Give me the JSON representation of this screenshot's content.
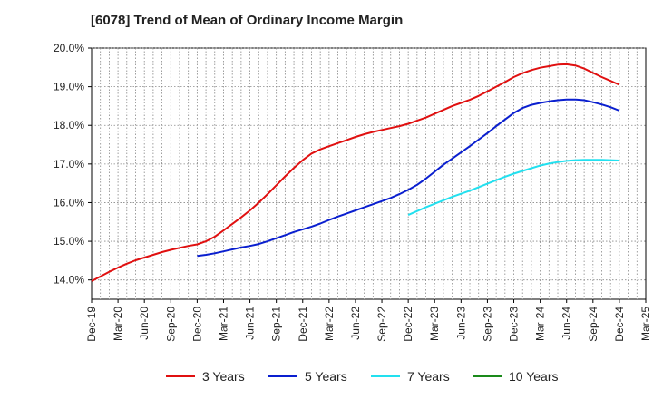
{
  "colors": {
    "3y": "#e01010",
    "5y": "#0a1fcf",
    "7y": "#22e0ef",
    "10y": "#1a8a1a",
    "grid": "#888888"
  },
  "chart_data": {
    "type": "line",
    "title": "[6078]  Trend of Mean of Ordinary Income Margin",
    "xlabel": "",
    "ylabel": "",
    "ylim": [
      13.5,
      20.0
    ],
    "yticks": [
      14.0,
      15.0,
      16.0,
      17.0,
      18.0,
      19.0,
      20.0
    ],
    "ytick_labels": [
      "14.0%",
      "15.0%",
      "16.0%",
      "17.0%",
      "18.0%",
      "19.0%",
      "20.0%"
    ],
    "xtick_labels": [
      "Dec-19",
      "Mar-20",
      "Jun-20",
      "Sep-20",
      "Dec-20",
      "Mar-21",
      "Jun-21",
      "Sep-21",
      "Dec-21",
      "Mar-22",
      "Jun-22",
      "Sep-22",
      "Dec-22",
      "Mar-23",
      "Jun-23",
      "Sep-23",
      "Dec-23",
      "Mar-24",
      "Jun-24",
      "Sep-24",
      "Dec-24",
      "Mar-25"
    ],
    "grid": true,
    "legend": "bottom",
    "series": [
      {
        "name": "3 Years",
        "color_key": "3y",
        "x": [
          "2019-12",
          "2020-01",
          "2020-02",
          "2020-03",
          "2020-04",
          "2020-05",
          "2020-06",
          "2020-07",
          "2020-08",
          "2020-09",
          "2020-10",
          "2020-11",
          "2020-12",
          "2021-01",
          "2021-02",
          "2021-03",
          "2021-04",
          "2021-05",
          "2021-06",
          "2021-07",
          "2021-08",
          "2021-09",
          "2021-10",
          "2021-11",
          "2021-12",
          "2022-01",
          "2022-02",
          "2022-03",
          "2022-04",
          "2022-05",
          "2022-06",
          "2022-07",
          "2022-08",
          "2022-09",
          "2022-10",
          "2022-11",
          "2022-12",
          "2023-01",
          "2023-02",
          "2023-03",
          "2023-04",
          "2023-05",
          "2023-06",
          "2023-07",
          "2023-08",
          "2023-09",
          "2023-10",
          "2023-11",
          "2023-12",
          "2024-01",
          "2024-02",
          "2024-03",
          "2024-04",
          "2024-05",
          "2024-06",
          "2024-07",
          "2024-08",
          "2024-09",
          "2024-10",
          "2024-11",
          "2024-12"
        ],
        "values": [
          13.97,
          14.09,
          14.21,
          14.32,
          14.42,
          14.51,
          14.58,
          14.65,
          14.72,
          14.78,
          14.83,
          14.88,
          14.92,
          15.0,
          15.12,
          15.28,
          15.45,
          15.62,
          15.8,
          16.0,
          16.22,
          16.45,
          16.68,
          16.9,
          17.1,
          17.27,
          17.38,
          17.46,
          17.54,
          17.62,
          17.7,
          17.77,
          17.83,
          17.88,
          17.93,
          17.98,
          18.04,
          18.12,
          18.2,
          18.3,
          18.4,
          18.5,
          18.58,
          18.66,
          18.76,
          18.88,
          19.0,
          19.12,
          19.25,
          19.35,
          19.43,
          19.49,
          19.53,
          19.57,
          19.58,
          19.55,
          19.47,
          19.36,
          19.25,
          19.15,
          19.05
        ]
      },
      {
        "name": "5 Years",
        "color_key": "5y",
        "x": [
          "2020-12",
          "2021-01",
          "2021-02",
          "2021-03",
          "2021-04",
          "2021-05",
          "2021-06",
          "2021-07",
          "2021-08",
          "2021-09",
          "2021-10",
          "2021-11",
          "2021-12",
          "2022-01",
          "2022-02",
          "2022-03",
          "2022-04",
          "2022-05",
          "2022-06",
          "2022-07",
          "2022-08",
          "2022-09",
          "2022-10",
          "2022-11",
          "2022-12",
          "2023-01",
          "2023-02",
          "2023-03",
          "2023-04",
          "2023-05",
          "2023-06",
          "2023-07",
          "2023-08",
          "2023-09",
          "2023-10",
          "2023-11",
          "2023-12",
          "2024-01",
          "2024-02",
          "2024-03",
          "2024-04",
          "2024-05",
          "2024-06",
          "2024-07",
          "2024-08",
          "2024-09",
          "2024-10",
          "2024-11",
          "2024-12"
        ],
        "values": [
          14.62,
          14.65,
          14.69,
          14.74,
          14.79,
          14.84,
          14.88,
          14.93,
          15.0,
          15.08,
          15.16,
          15.24,
          15.31,
          15.38,
          15.46,
          15.55,
          15.64,
          15.72,
          15.8,
          15.88,
          15.96,
          16.04,
          16.12,
          16.22,
          16.33,
          16.46,
          16.62,
          16.8,
          16.98,
          17.14,
          17.3,
          17.46,
          17.63,
          17.8,
          17.98,
          18.15,
          18.32,
          18.45,
          18.53,
          18.58,
          18.62,
          18.65,
          18.67,
          18.67,
          18.65,
          18.6,
          18.54,
          18.47,
          18.38
        ]
      },
      {
        "name": "7 Years",
        "color_key": "7y",
        "x": [
          "2022-12",
          "2023-01",
          "2023-02",
          "2023-03",
          "2023-04",
          "2023-05",
          "2023-06",
          "2023-07",
          "2023-08",
          "2023-09",
          "2023-10",
          "2023-11",
          "2023-12",
          "2024-01",
          "2024-02",
          "2024-03",
          "2024-04",
          "2024-05",
          "2024-06",
          "2024-07",
          "2024-08",
          "2024-09",
          "2024-10",
          "2024-11",
          "2024-12"
        ],
        "values": [
          15.68,
          15.78,
          15.88,
          15.97,
          16.06,
          16.15,
          16.23,
          16.31,
          16.4,
          16.49,
          16.58,
          16.67,
          16.75,
          16.82,
          16.89,
          16.96,
          17.01,
          17.05,
          17.08,
          17.1,
          17.11,
          17.11,
          17.11,
          17.1,
          17.09
        ]
      },
      {
        "name": "10 Years",
        "color_key": "10y",
        "x": [],
        "values": []
      }
    ]
  }
}
